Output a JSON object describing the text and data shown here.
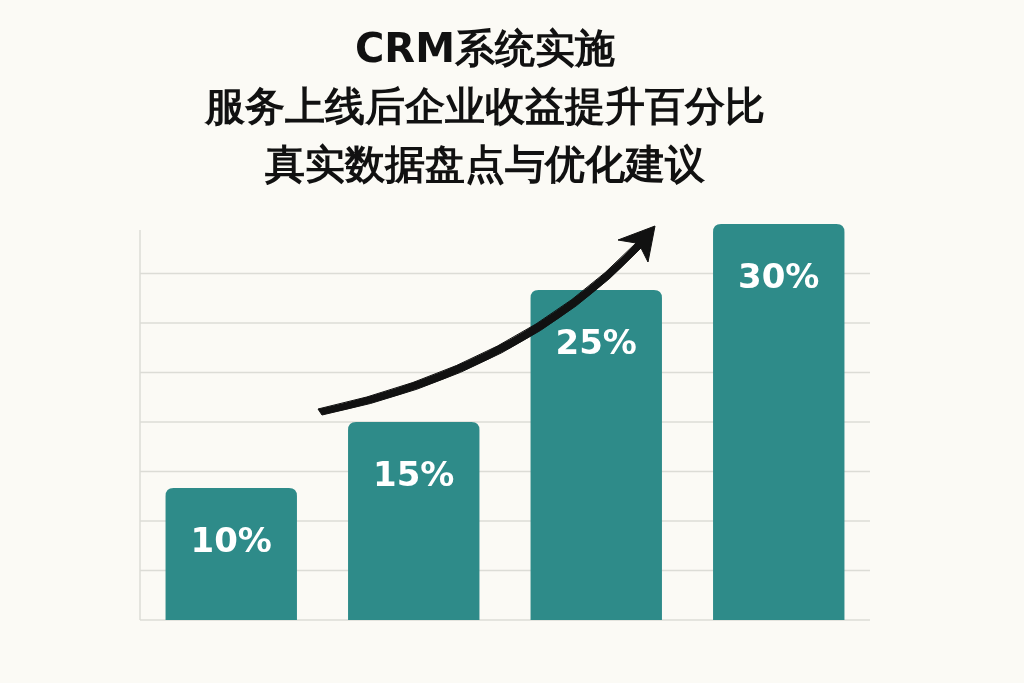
{
  "chart_data": {
    "type": "bar",
    "title": "CRM系统实施服务上线后企业收益提升百分比真实数据盘点与优化建议",
    "categories": [
      null,
      null,
      null,
      null
    ],
    "values": [
      10,
      15,
      25,
      30
    ],
    "value_labels": [
      "10%",
      "15%",
      "25%",
      "30%"
    ],
    "color": "#2e8b89",
    "grid": "y"
  }
}
